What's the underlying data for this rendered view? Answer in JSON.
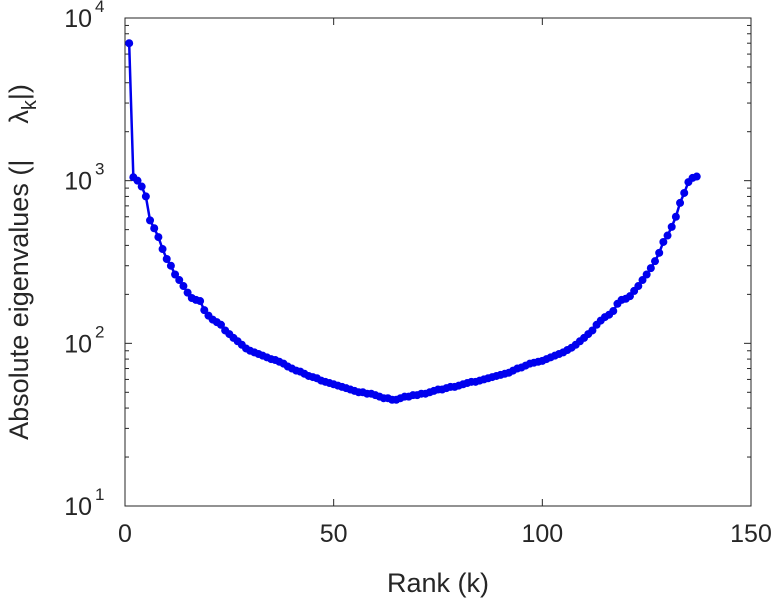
{
  "chart_data": {
    "type": "line",
    "title": "",
    "xlabel": "Rank (k)",
    "ylabel_main": "Absolute eigenvalues (|",
    "ylabel_symbol": "λ",
    "ylabel_subscript": "k",
    "ylabel_close": "|)",
    "xlim": [
      0,
      150
    ],
    "ylim": [
      10,
      10000
    ],
    "yscale": "log",
    "grid": false,
    "x_ticks": [
      0,
      50,
      100,
      150
    ],
    "x_tick_labels": [
      "0",
      "50",
      "100",
      "150"
    ],
    "y_ticks": [
      10,
      100,
      1000,
      10000
    ],
    "y_tick_base": "10",
    "y_tick_exponents": [
      "1",
      "2",
      "3",
      "4"
    ],
    "series": [
      {
        "color": "#0000ee",
        "marker": "circle",
        "x": [
          1,
          2,
          3,
          4,
          5,
          6,
          7,
          8,
          9,
          10,
          11,
          12,
          13,
          14,
          15,
          16,
          17,
          18,
          19,
          20,
          21,
          22,
          23,
          24,
          25,
          26,
          27,
          28,
          29,
          30,
          31,
          32,
          33,
          34,
          35,
          36,
          37,
          38,
          39,
          40,
          41,
          42,
          43,
          44,
          45,
          46,
          47,
          48,
          49,
          50,
          51,
          52,
          53,
          54,
          55,
          56,
          57,
          58,
          59,
          60,
          61,
          62,
          63,
          64,
          65,
          66,
          67,
          68,
          69,
          70,
          71,
          72,
          73,
          74,
          75,
          76,
          77,
          78,
          79,
          80,
          81,
          82,
          83,
          84,
          85,
          86,
          87,
          88,
          89,
          90,
          91,
          92,
          93,
          94,
          95,
          96,
          97,
          98,
          99,
          100,
          101,
          102,
          103,
          104,
          105,
          106,
          107,
          108,
          109,
          110,
          111,
          112,
          113,
          114,
          115,
          116,
          117,
          118,
          119,
          120,
          121,
          122,
          123,
          124,
          125,
          126,
          127,
          128,
          129,
          130,
          131,
          132,
          133,
          134,
          135,
          136,
          137
        ],
        "y": [
          7000,
          1050,
          1000,
          920,
          800,
          570,
          510,
          450,
          380,
          330,
          300,
          265,
          245,
          225,
          205,
          190,
          185,
          182,
          160,
          148,
          140,
          135,
          130,
          120,
          114,
          108,
          103,
          98,
          93,
          90,
          88,
          86,
          84,
          82,
          80,
          79,
          77,
          75,
          72,
          70,
          68,
          67,
          65,
          63,
          62,
          61,
          59,
          58,
          57,
          56,
          55,
          54,
          53,
          52,
          51,
          50,
          50,
          49,
          49,
          48,
          47,
          46,
          46,
          45,
          45,
          46,
          47,
          47,
          48,
          48,
          49,
          49,
          50,
          51,
          52,
          52,
          53,
          54,
          54,
          55,
          56,
          57,
          58,
          58,
          59,
          60,
          61,
          62,
          63,
          64,
          65,
          66,
          68,
          70,
          71,
          73,
          75,
          76,
          77,
          78,
          80,
          82,
          84,
          86,
          88,
          91,
          94,
          98,
          103,
          108,
          114,
          120,
          130,
          138,
          145,
          150,
          158,
          175,
          185,
          188,
          195,
          210,
          225,
          245,
          265,
          290,
          320,
          360,
          420,
          460,
          520,
          600,
          730,
          840,
          980,
          1040,
          1060
        ]
      }
    ]
  }
}
